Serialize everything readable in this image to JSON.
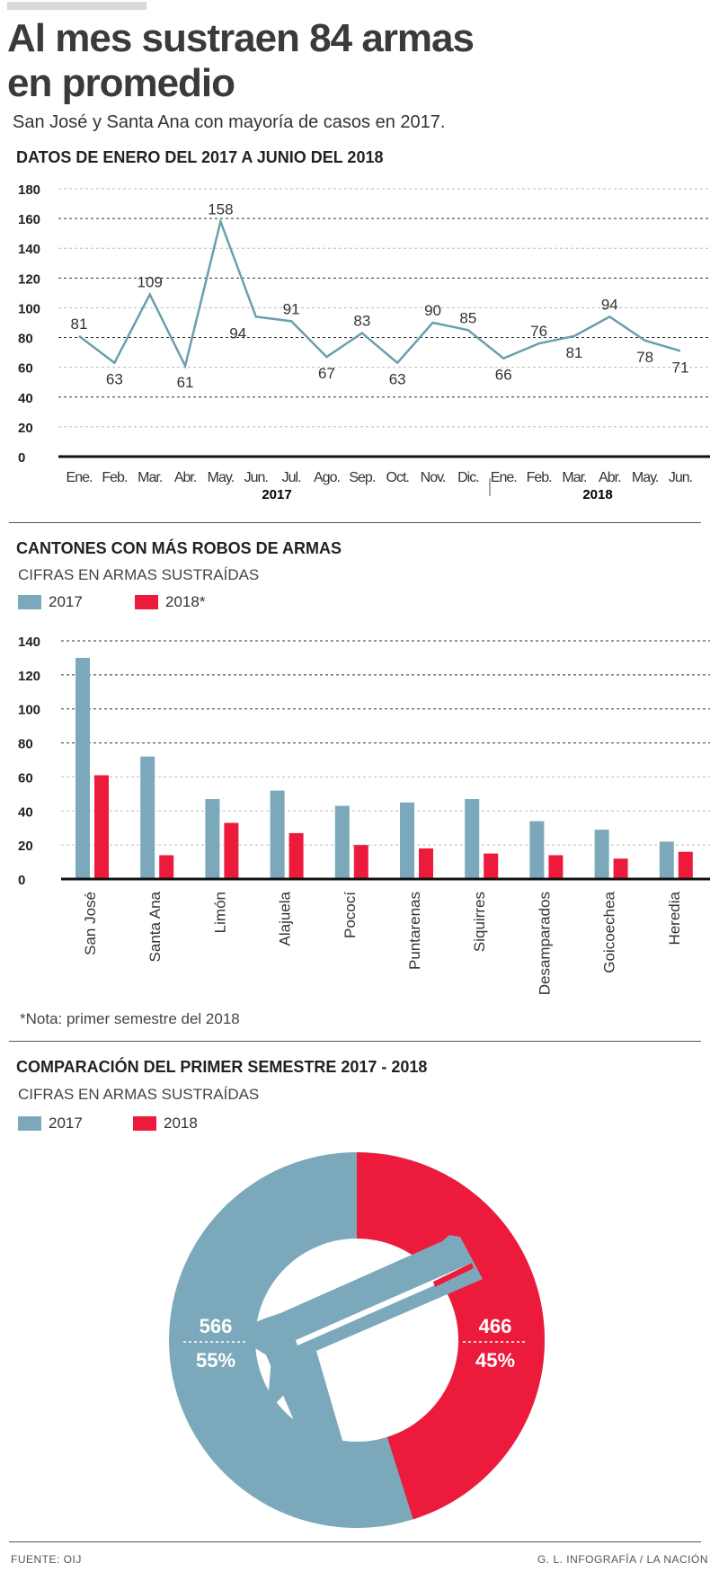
{
  "header": {
    "title_line1": "Al mes sustraen 84 armas",
    "title_line2": "en promedio",
    "subtitle": "San José y Santa Ana con mayoría de casos en 2017."
  },
  "colors": {
    "y2017": "#7ba9bb",
    "y2018": "#ec1b3b",
    "line": "#6a9fae"
  },
  "chart_data": [
    {
      "type": "line",
      "title": "DATOS DE ENERO DEL 2017 A JUNIO DEL 2018",
      "categories": [
        "Ene.",
        "Feb.",
        "Mar.",
        "Abr.",
        "May.",
        "Jun.",
        "Jul.",
        "Ago.",
        "Sep.",
        "Oct.",
        "Nov.",
        "Dic.",
        "Ene.",
        "Feb.",
        "Mar.",
        "Abr.",
        "May.",
        "Jun."
      ],
      "values": [
        81,
        63,
        109,
        61,
        158,
        94,
        91,
        67,
        83,
        63,
        90,
        85,
        66,
        76,
        81,
        94,
        78,
        71
      ],
      "year_labels": [
        "2017",
        "2018"
      ],
      "yticks": [
        "0",
        "20",
        "40",
        "60",
        "80",
        "100",
        "120",
        "140",
        "160",
        "180"
      ],
      "ylim": [
        0,
        180
      ],
      "grid": true
    },
    {
      "type": "bar",
      "title": "CANTONES CON MÁS ROBOS DE ARMAS",
      "subtitle": "CIFRAS EN ARMAS SUSTRAÍDAS",
      "categories": [
        "San José",
        "Santa Ana",
        "Limón",
        "Alajuela",
        "Pococí",
        "Puntarenas",
        "Siquirres",
        "Desamparados",
        "Goicoechea",
        "Heredia"
      ],
      "series": [
        {
          "name": "2017",
          "values": [
            130,
            72,
            47,
            52,
            43,
            45,
            47,
            34,
            29,
            22
          ]
        },
        {
          "name": "2018*",
          "values": [
            61,
            14,
            33,
            27,
            20,
            18,
            15,
            14,
            12,
            16
          ]
        }
      ],
      "yticks": [
        "0",
        "20",
        "40",
        "60",
        "80",
        "100",
        "120",
        "140"
      ],
      "ylim": [
        0,
        140
      ],
      "grid": true,
      "legend": "top-left",
      "note": "*Nota: primer semestre del 2018"
    },
    {
      "type": "pie",
      "title": "COMPARACIÓN DEL PRIMER SEMESTRE 2017 - 2018",
      "subtitle": "CIFRAS EN ARMAS SUSTRAÍDAS",
      "series": [
        {
          "name": "2017",
          "value": 566,
          "percent": "55%"
        },
        {
          "name": "2018",
          "value": 466,
          "percent": "45%"
        }
      ],
      "icon": "pistol-icon",
      "legend": "top-left"
    }
  ],
  "footer": {
    "source": "FUENTE: OIJ",
    "credit": "G. L. INFOGRAFÍA / LA NACIÓN"
  }
}
